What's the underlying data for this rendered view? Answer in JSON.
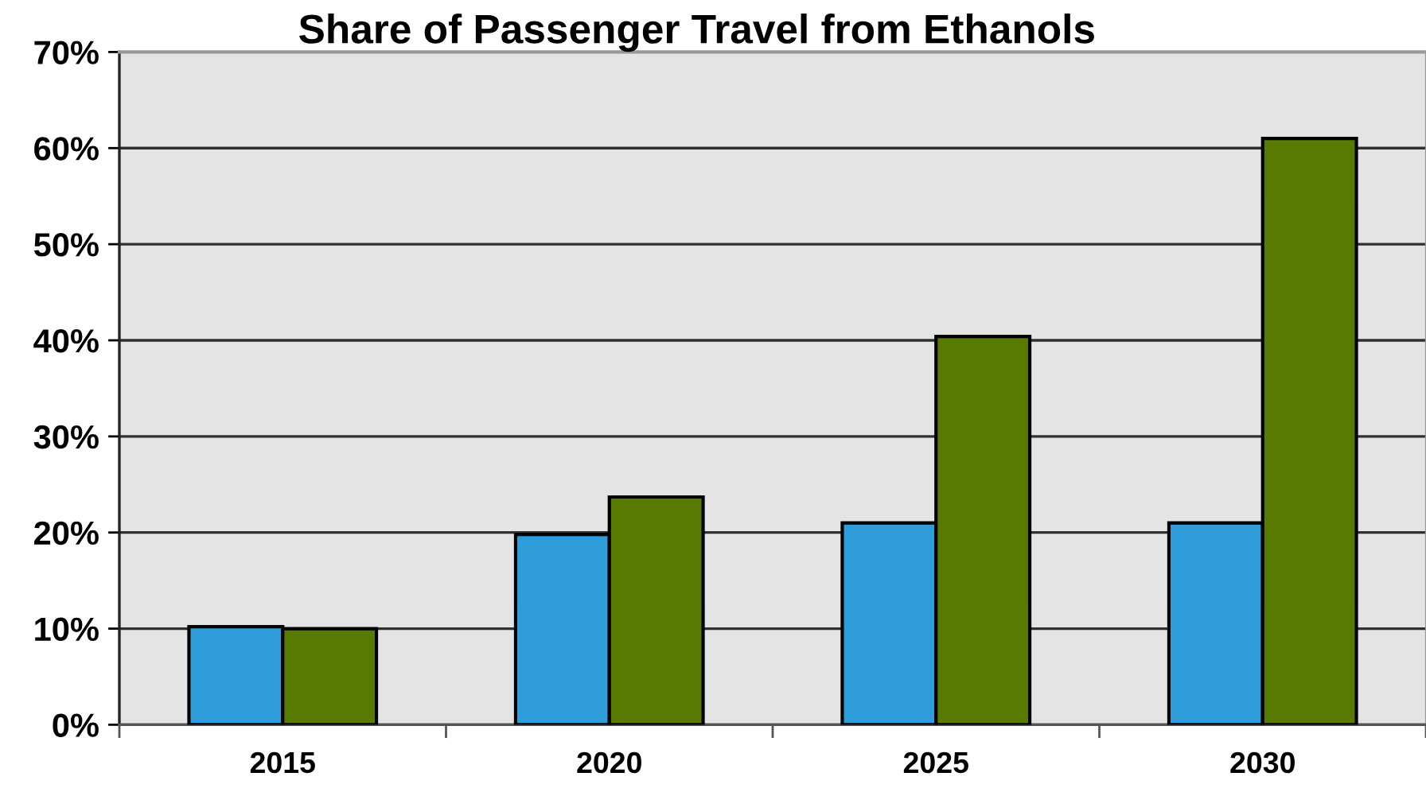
{
  "chart_data": {
    "type": "bar",
    "title": "Share of Passenger Travel from Ethanols",
    "categories": [
      "2015",
      "2020",
      "2025",
      "2030"
    ],
    "series": [
      {
        "color": "#309ddb",
        "values": [
          10.2,
          19.8,
          21.0,
          21.0
        ]
      },
      {
        "color": "#587a00",
        "values": [
          10.0,
          23.7,
          40.4,
          61.0
        ]
      }
    ],
    "ylim": [
      0,
      70
    ],
    "yticks": [
      {
        "value": 0,
        "label": "0%"
      },
      {
        "value": 10,
        "label": "10%"
      },
      {
        "value": 20,
        "label": "20%"
      },
      {
        "value": 30,
        "label": "30%"
      },
      {
        "value": 40,
        "label": "40%"
      },
      {
        "value": 50,
        "label": "50%"
      },
      {
        "value": 60,
        "label": "60%"
      },
      {
        "value": 70,
        "label": "70%"
      }
    ],
    "grid": "y"
  }
}
